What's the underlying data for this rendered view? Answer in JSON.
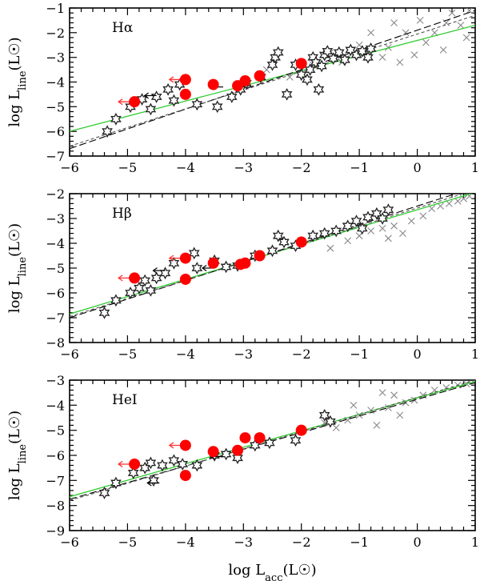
{
  "chart_data": [
    {
      "type": "scatter",
      "panel_label": "Hα",
      "xlabel": "log  L_acc(L☉)",
      "ylabel": "log  L_line(L☉)",
      "xlim": [
        -6,
        1
      ],
      "ylim": [
        -7,
        -1
      ],
      "xticks": [
        -6,
        -5,
        -4,
        -3,
        -2,
        -1,
        0,
        1
      ],
      "yticks": [
        -7,
        -6,
        -5,
        -4,
        -3,
        -2,
        -1
      ],
      "fits": [
        {
          "style": "green-solid",
          "x": [
            -6,
            1
          ],
          "y": [
            -6.0,
            -1.7
          ]
        },
        {
          "style": "black-long-dash",
          "x": [
            -6,
            1
          ],
          "y": [
            -6.7,
            -1.1
          ]
        },
        {
          "style": "gray-short-dash",
          "x": [
            -6,
            1
          ],
          "y": [
            -6.6,
            -1.3
          ]
        }
      ],
      "red_points": [
        {
          "x": -4.88,
          "y": -4.8,
          "upper_limit": true
        },
        {
          "x": -4.0,
          "y": -3.9,
          "upper_limit": true
        },
        {
          "x": -4.0,
          "y": -4.5,
          "upper_limit": false
        },
        {
          "x": -3.52,
          "y": -4.1,
          "upper_limit": false
        },
        {
          "x": -3.1,
          "y": -4.15,
          "upper_limit": false
        },
        {
          "x": -2.97,
          "y": -3.95,
          "upper_limit": false
        },
        {
          "x": -2.72,
          "y": -3.75,
          "upper_limit": false
        },
        {
          "x": -2.0,
          "y": -3.25,
          "upper_limit": false
        }
      ],
      "stars": [
        {
          "x": -5.35,
          "y": -6.0
        },
        {
          "x": -5.2,
          "y": -5.5
        },
        {
          "x": -4.95,
          "y": -5.0
        },
        {
          "x": -4.75,
          "y": -4.7
        },
        {
          "x": -4.6,
          "y": -5.1
        },
        {
          "x": -4.5,
          "y": -4.6
        },
        {
          "x": -4.3,
          "y": -4.3
        },
        {
          "x": -4.2,
          "y": -4.75
        },
        {
          "x": -4.1,
          "y": -4.1
        },
        {
          "x": -3.8,
          "y": -4.9
        },
        {
          "x": -3.45,
          "y": -5.0
        },
        {
          "x": -3.2,
          "y": -4.6
        },
        {
          "x": -3.05,
          "y": -4.3
        },
        {
          "x": -2.95,
          "y": -4.05
        },
        {
          "x": -2.7,
          "y": -3.8
        },
        {
          "x": -2.5,
          "y": -3.3
        },
        {
          "x": -2.45,
          "y": -3.0
        },
        {
          "x": -2.4,
          "y": -2.8
        },
        {
          "x": -2.25,
          "y": -4.5
        },
        {
          "x": -2.1,
          "y": -3.3
        },
        {
          "x": -2.0,
          "y": -3.7
        },
        {
          "x": -1.9,
          "y": -3.9
        },
        {
          "x": -1.85,
          "y": -3.5
        },
        {
          "x": -1.8,
          "y": -3.0
        },
        {
          "x": -1.75,
          "y": -3.2
        },
        {
          "x": -1.7,
          "y": -4.3
        },
        {
          "x": -1.65,
          "y": -3.35
        },
        {
          "x": -1.6,
          "y": -2.9
        },
        {
          "x": -1.55,
          "y": -2.75
        },
        {
          "x": -1.45,
          "y": -3.05
        },
        {
          "x": -1.35,
          "y": -2.8
        },
        {
          "x": -1.25,
          "y": -3.1
        },
        {
          "x": -1.15,
          "y": -2.7
        },
        {
          "x": -1.05,
          "y": -2.9
        },
        {
          "x": -0.95,
          "y": -2.75
        },
        {
          "x": -0.85,
          "y": -3.0
        },
        {
          "x": -0.8,
          "y": -2.65
        }
      ],
      "crosses": [
        {
          "x": -2.6,
          "y": -3.5
        },
        {
          "x": -2.2,
          "y": -3.8
        },
        {
          "x": -1.8,
          "y": -3.3
        },
        {
          "x": -1.5,
          "y": -2.8
        },
        {
          "x": -1.3,
          "y": -3.2
        },
        {
          "x": -1.0,
          "y": -2.5
        },
        {
          "x": -0.8,
          "y": -2.0
        },
        {
          "x": -0.6,
          "y": -3.0
        },
        {
          "x": -0.5,
          "y": -2.6
        },
        {
          "x": -0.4,
          "y": -1.6
        },
        {
          "x": -0.3,
          "y": -3.2
        },
        {
          "x": -0.2,
          "y": -2.0
        },
        {
          "x": -0.05,
          "y": -2.9
        },
        {
          "x": 0.05,
          "y": -1.5
        },
        {
          "x": 0.15,
          "y": -2.4
        },
        {
          "x": 0.3,
          "y": -2.0
        },
        {
          "x": 0.5,
          "y": -1.6
        },
        {
          "x": 0.6,
          "y": -1.2
        },
        {
          "x": 0.75,
          "y": -1.7
        },
        {
          "x": 0.85,
          "y": -2.2
        },
        {
          "x": 0.9,
          "y": -1.1
        },
        {
          "x": 0.45,
          "y": -2.7
        }
      ],
      "black_arrows": [
        {
          "x": -3.35,
          "y": -4.2
        },
        {
          "x": -4.5,
          "y": -4.55
        }
      ]
    },
    {
      "type": "scatter",
      "panel_label": "Hβ",
      "xlabel": "log  L_acc(L☉)",
      "ylabel": "log  L_line(L☉)",
      "xlim": [
        -6,
        1
      ],
      "ylim": [
        -8,
        -2
      ],
      "xticks": [
        -6,
        -5,
        -4,
        -3,
        -2,
        -1,
        0,
        1
      ],
      "yticks": [
        -8,
        -7,
        -6,
        -5,
        -4,
        -3,
        -2
      ],
      "fits": [
        {
          "style": "green-solid",
          "x": [
            -6,
            1
          ],
          "y": [
            -6.85,
            -1.95
          ]
        },
        {
          "style": "black-long-dash",
          "x": [
            -6,
            1
          ],
          "y": [
            -7.0,
            -1.75
          ]
        },
        {
          "style": "gray-short-dash",
          "x": [
            -6,
            1
          ],
          "y": [
            -6.95,
            -1.85
          ]
        }
      ],
      "red_points": [
        {
          "x": -4.88,
          "y": -5.4,
          "upper_limit": true
        },
        {
          "x": -4.0,
          "y": -4.6,
          "upper_limit": true
        },
        {
          "x": -4.0,
          "y": -5.45,
          "upper_limit": false
        },
        {
          "x": -3.52,
          "y": -4.8,
          "upper_limit": false
        },
        {
          "x": -3.05,
          "y": -4.85,
          "upper_limit": false
        },
        {
          "x": -2.97,
          "y": -4.8,
          "upper_limit": false
        },
        {
          "x": -2.72,
          "y": -4.5,
          "upper_limit": false
        },
        {
          "x": -2.0,
          "y": -3.95,
          "upper_limit": false
        }
      ],
      "stars": [
        {
          "x": -5.4,
          "y": -6.8
        },
        {
          "x": -5.2,
          "y": -6.3
        },
        {
          "x": -4.95,
          "y": -6.0
        },
        {
          "x": -4.8,
          "y": -5.8
        },
        {
          "x": -4.7,
          "y": -5.5
        },
        {
          "x": -4.6,
          "y": -5.9
        },
        {
          "x": -4.5,
          "y": -5.4
        },
        {
          "x": -4.35,
          "y": -5.2
        },
        {
          "x": -4.2,
          "y": -4.8
        },
        {
          "x": -3.85,
          "y": -4.4
        },
        {
          "x": -3.8,
          "y": -5.0
        },
        {
          "x": -3.5,
          "y": -4.7
        },
        {
          "x": -3.3,
          "y": -4.95
        },
        {
          "x": -3.1,
          "y": -4.9
        },
        {
          "x": -2.8,
          "y": -4.5
        },
        {
          "x": -2.5,
          "y": -4.3
        },
        {
          "x": -2.4,
          "y": -3.7
        },
        {
          "x": -2.3,
          "y": -3.95
        },
        {
          "x": -2.1,
          "y": -4.1
        },
        {
          "x": -1.8,
          "y": -3.7
        },
        {
          "x": -1.6,
          "y": -3.6
        },
        {
          "x": -1.4,
          "y": -3.5
        },
        {
          "x": -1.2,
          "y": -3.3
        },
        {
          "x": -1.05,
          "y": -3.1
        },
        {
          "x": -0.95,
          "y": -3.4
        },
        {
          "x": -0.85,
          "y": -2.95
        },
        {
          "x": -0.7,
          "y": -2.8
        },
        {
          "x": -0.6,
          "y": -3.0
        },
        {
          "x": -0.5,
          "y": -2.65
        }
      ],
      "crosses": [
        {
          "x": -1.2,
          "y": -3.9
        },
        {
          "x": -1.0,
          "y": -3.7
        },
        {
          "x": -0.8,
          "y": -3.5
        },
        {
          "x": -0.6,
          "y": -3.4
        },
        {
          "x": -0.4,
          "y": -3.3
        },
        {
          "x": -0.25,
          "y": -3.6
        },
        {
          "x": -0.1,
          "y": -3.1
        },
        {
          "x": 0.1,
          "y": -2.9
        },
        {
          "x": 0.25,
          "y": -2.6
        },
        {
          "x": 0.4,
          "y": -2.5
        },
        {
          "x": 0.55,
          "y": -2.4
        },
        {
          "x": 0.7,
          "y": -2.3
        },
        {
          "x": 0.8,
          "y": -2.2
        },
        {
          "x": 0.9,
          "y": -2.1
        },
        {
          "x": -0.5,
          "y": -3.8
        },
        {
          "x": -1.5,
          "y": -4.2
        }
      ],
      "black_arrows": [
        {
          "x": -4.35,
          "y": -5.1
        },
        {
          "x": -3.5,
          "y": -5.0
        }
      ]
    },
    {
      "type": "scatter",
      "panel_label": "HeI",
      "xlabel": "log  L_acc(L☉)",
      "ylabel": "log  L_line(L☉)",
      "xlim": [
        -6,
        1
      ],
      "ylim": [
        -9,
        -3
      ],
      "xticks": [
        -6,
        -5,
        -4,
        -3,
        -2,
        -1,
        0,
        1
      ],
      "yticks": [
        -9,
        -8,
        -7,
        -6,
        -5,
        -4,
        -3
      ],
      "fits": [
        {
          "style": "green-solid",
          "x": [
            -6,
            1
          ],
          "y": [
            -7.65,
            -3.05
          ]
        },
        {
          "style": "black-long-dash",
          "x": [
            -6,
            1
          ],
          "y": [
            -7.75,
            -3.1
          ]
        },
        {
          "style": "gray-short-dash",
          "x": [
            -6,
            1
          ],
          "y": [
            -7.8,
            -3.0
          ]
        }
      ],
      "red_points": [
        {
          "x": -4.88,
          "y": -6.35,
          "upper_limit": true
        },
        {
          "x": -4.0,
          "y": -5.6,
          "upper_limit": true
        },
        {
          "x": -4.0,
          "y": -6.8,
          "upper_limit": false
        },
        {
          "x": -3.52,
          "y": -5.85,
          "upper_limit": false
        },
        {
          "x": -3.1,
          "y": -5.8,
          "upper_limit": false
        },
        {
          "x": -2.97,
          "y": -5.3,
          "upper_limit": false
        },
        {
          "x": -2.72,
          "y": -5.3,
          "upper_limit": false
        },
        {
          "x": -2.0,
          "y": -5.0,
          "upper_limit": false
        }
      ],
      "stars": [
        {
          "x": -5.4,
          "y": -7.5
        },
        {
          "x": -5.2,
          "y": -7.1
        },
        {
          "x": -4.9,
          "y": -6.7
        },
        {
          "x": -4.7,
          "y": -6.5
        },
        {
          "x": -4.6,
          "y": -6.3
        },
        {
          "x": -4.55,
          "y": -7.0
        },
        {
          "x": -4.4,
          "y": -6.4
        },
        {
          "x": -4.2,
          "y": -6.2
        },
        {
          "x": -4.05,
          "y": -6.35
        },
        {
          "x": -3.8,
          "y": -6.4
        },
        {
          "x": -3.5,
          "y": -6.0
        },
        {
          "x": -3.3,
          "y": -5.95
        },
        {
          "x": -3.1,
          "y": -6.1
        },
        {
          "x": -2.8,
          "y": -5.6
        },
        {
          "x": -2.55,
          "y": -5.5
        },
        {
          "x": -2.1,
          "y": -5.4
        },
        {
          "x": -1.6,
          "y": -4.4
        },
        {
          "x": -1.5,
          "y": -4.65
        }
      ],
      "crosses": [
        {
          "x": -1.6,
          "y": -4.7
        },
        {
          "x": -1.4,
          "y": -4.9
        },
        {
          "x": -1.2,
          "y": -4.6
        },
        {
          "x": -1.0,
          "y": -4.4
        },
        {
          "x": -0.8,
          "y": -4.2
        },
        {
          "x": -0.6,
          "y": -3.5
        },
        {
          "x": -0.5,
          "y": -4.1
        },
        {
          "x": -0.4,
          "y": -3.6
        },
        {
          "x": -0.3,
          "y": -4.4
        },
        {
          "x": -0.2,
          "y": -3.9
        },
        {
          "x": -0.05,
          "y": -3.8
        },
        {
          "x": 0.1,
          "y": -3.6
        },
        {
          "x": 0.3,
          "y": -3.4
        },
        {
          "x": 0.5,
          "y": -3.3
        },
        {
          "x": 0.7,
          "y": -3.2
        },
        {
          "x": 0.85,
          "y": -3.15
        },
        {
          "x": -0.7,
          "y": -4.8
        },
        {
          "x": -1.1,
          "y": -4.0
        }
      ],
      "black_arrows": [
        {
          "x": -4.45,
          "y": -7.1
        },
        {
          "x": -3.35,
          "y": -6.05
        }
      ]
    }
  ]
}
